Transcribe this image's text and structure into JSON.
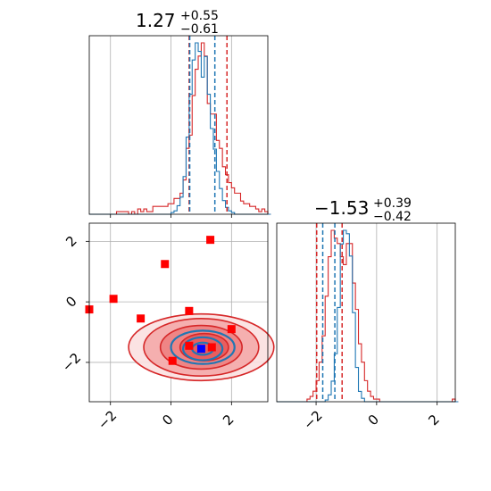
{
  "chart_data": {
    "type": "corner",
    "colors": {
      "red": "#d62728",
      "blue": "#1f77b4",
      "marker_red": "#ff0000",
      "marker_blue": "#0000ff",
      "grid": "#b0b0b0"
    },
    "panels": [
      {
        "id": "hist_param1",
        "type": "histogram",
        "title": {
          "value": "1.27",
          "plus": "+0.55",
          "minus": "−0.61"
        },
        "xlim": [
          -2.7,
          3.2
        ],
        "xgrid": [
          -2,
          0,
          2
        ],
        "red_quantile_lines": [
          0.6,
          1.85
        ],
        "blue_quantile_lines": [
          0.62,
          1.45
        ],
        "red_bins": {
          "start": -2.7,
          "step": 0.1,
          "values": [
            0,
            0,
            0,
            0,
            0,
            0,
            0,
            0,
            0,
            1,
            1,
            1,
            1,
            0,
            1,
            0,
            2,
            1,
            2,
            1,
            1,
            3,
            3,
            3,
            3,
            3,
            4,
            4,
            6,
            6,
            8,
            13,
            25,
            30,
            45,
            55,
            60,
            65,
            60,
            42,
            38,
            38,
            28,
            25,
            18,
            15,
            12,
            10,
            8,
            8,
            5,
            4,
            4,
            3,
            3,
            2,
            1,
            2,
            1,
            0
          ]
        },
        "blue_bins": {
          "start": -2.7,
          "step": 0.1,
          "values": [
            0,
            0,
            0,
            0,
            0,
            0,
            0,
            0,
            0,
            0,
            0,
            0,
            0,
            0,
            0,
            0,
            0,
            0,
            0,
            0,
            0,
            0,
            0,
            0,
            0,
            0,
            0,
            1,
            2,
            5,
            10,
            22,
            45,
            70,
            90,
            100,
            95,
            80,
            92,
            70,
            50,
            38,
            25,
            15,
            8,
            4,
            2,
            1,
            0,
            0,
            0,
            0,
            0,
            0,
            0,
            0,
            0,
            0,
            0,
            0
          ]
        }
      },
      {
        "id": "hist_param2",
        "type": "histogram",
        "title": {
          "value": "−1.53",
          "plus": "+0.39",
          "minus": "−0.42"
        },
        "xlim": [
          -3.3,
          2.6
        ],
        "xgrid": [
          -2,
          0,
          2
        ],
        "xticks": [
          "−2",
          "0",
          "2"
        ],
        "red_quantile_lines": [
          -1.98,
          -1.14
        ],
        "blue_quantile_lines": [
          -1.78,
          -1.38
        ],
        "red_bins": {
          "start": -3.3,
          "step": 0.1,
          "values": [
            0,
            0,
            0,
            0,
            0,
            0,
            0,
            0,
            0,
            0,
            1,
            2,
            4,
            8,
            15,
            25,
            40,
            55,
            65,
            62,
            60,
            55,
            52,
            60,
            60,
            45,
            35,
            22,
            15,
            8,
            4,
            2,
            1,
            1,
            0,
            0,
            0,
            0,
            0,
            0,
            0,
            0,
            0,
            0,
            0,
            0,
            0,
            0,
            0,
            0,
            0,
            0,
            0,
            0,
            0,
            0,
            0,
            0,
            1,
            0
          ]
        },
        "blue_bins": {
          "start": -3.3,
          "step": 0.1,
          "values": [
            0,
            0,
            0,
            0,
            0,
            0,
            0,
            0,
            0,
            0,
            0,
            0,
            0,
            0,
            0,
            0,
            1,
            4,
            12,
            28,
            55,
            92,
            100,
            98,
            85,
            52,
            20,
            6,
            2,
            0,
            0,
            0,
            0,
            0,
            0,
            0,
            0,
            0,
            0,
            0,
            0,
            0,
            0,
            0,
            0,
            0,
            0,
            0,
            0,
            0,
            0,
            0,
            0,
            0,
            0,
            0,
            0,
            0,
            0,
            0
          ]
        }
      },
      {
        "id": "joint",
        "type": "contour_scatter",
        "xlim": [
          -2.7,
          3.2
        ],
        "ylim": [
          -3.3,
          2.6
        ],
        "xticks": [
          "−2",
          "0",
          "2"
        ],
        "yticks": [
          "−2",
          "0",
          "2"
        ],
        "red_markers": [
          [
            -2.7,
            -0.25
          ],
          [
            -1.9,
            0.1
          ],
          [
            -1.0,
            -0.55
          ],
          [
            -0.2,
            1.25
          ],
          [
            1.3,
            2.05
          ],
          [
            0.6,
            -0.3
          ],
          [
            2.0,
            -0.9
          ],
          [
            0.05,
            -1.95
          ],
          [
            0.6,
            -1.45
          ],
          [
            1.35,
            -1.5
          ]
        ],
        "blue_marker": [
          1.0,
          -1.55
        ],
        "red_contours": [
          {
            "cx": 1.0,
            "cy": -1.5,
            "rx": 2.4,
            "ry": 1.1
          },
          {
            "cx": 1.0,
            "cy": -1.5,
            "rx": 1.9,
            "ry": 0.95
          },
          {
            "cx": 1.0,
            "cy": -1.5,
            "rx": 1.35,
            "ry": 0.72
          },
          {
            "cx": 1.1,
            "cy": -1.5,
            "rx": 0.8,
            "ry": 0.45
          }
        ],
        "blue_contours": [
          {
            "cx": 1.05,
            "cy": -1.5,
            "rx": 1.05,
            "ry": 0.55
          },
          {
            "cx": 1.05,
            "cy": -1.55,
            "rx": 0.65,
            "ry": 0.38
          },
          {
            "cx": 1.05,
            "cy": -1.55,
            "rx": 0.35,
            "ry": 0.2
          }
        ]
      }
    ]
  }
}
